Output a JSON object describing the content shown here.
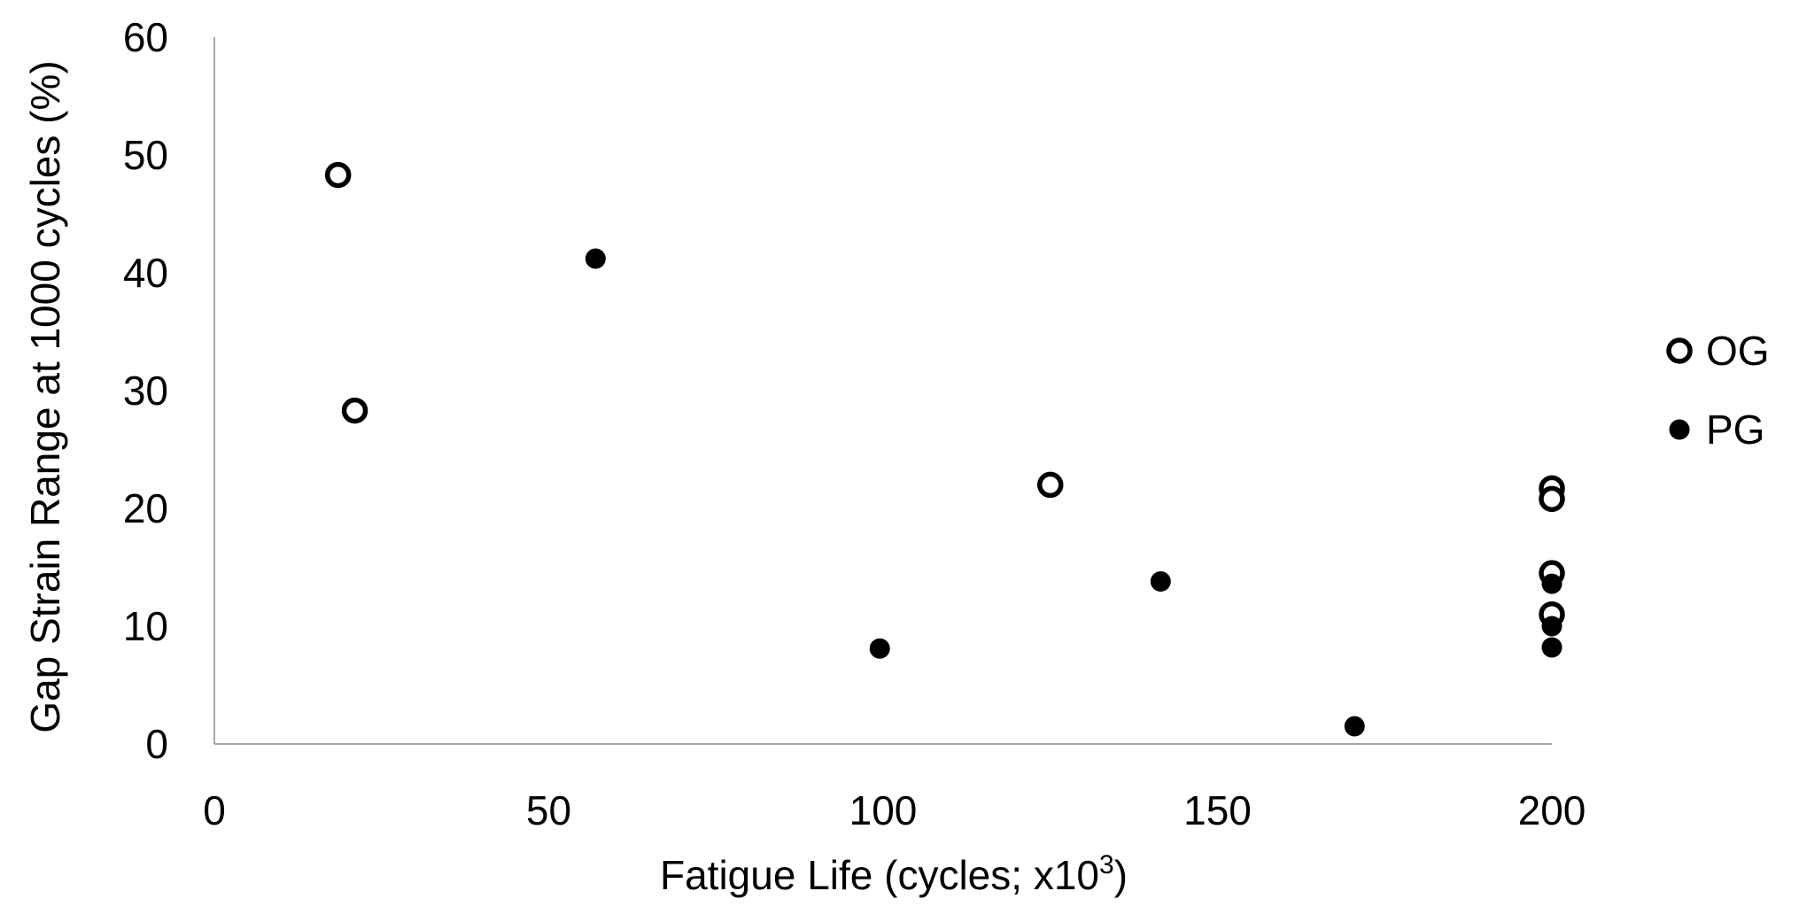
{
  "chart_data": {
    "type": "scatter",
    "title": "",
    "xlabel": "Fatigue Life (cycles; x10",
    "xlabel_superscript": "3",
    "xlabel_suffix": ")",
    "ylabel": "Gap Strain Range at 1000 cycles (%)",
    "xlim": [
      0,
      200
    ],
    "ylim": [
      0,
      60
    ],
    "x_ticks": [
      "0",
      "50",
      "100",
      "150",
      "200"
    ],
    "y_ticks": [
      "0",
      "10",
      "20",
      "30",
      "40",
      "50",
      "60"
    ],
    "grid": false,
    "legend_position": "right",
    "series": [
      {
        "name": "OG",
        "marker": "open-circle",
        "color": "#000000",
        "points": [
          {
            "x": 18.5,
            "y": 48.3
          },
          {
            "x": 21,
            "y": 28.3
          },
          {
            "x": 125,
            "y": 22
          },
          {
            "x": 200,
            "y": 21.7
          },
          {
            "x": 200,
            "y": 20.8
          },
          {
            "x": 200,
            "y": 14.5
          },
          {
            "x": 200,
            "y": 11
          }
        ]
      },
      {
        "name": "PG",
        "marker": "filled-circle",
        "color": "#000000",
        "points": [
          {
            "x": 57,
            "y": 41.2
          },
          {
            "x": 99.5,
            "y": 8.1
          },
          {
            "x": 141.5,
            "y": 13.8
          },
          {
            "x": 170.5,
            "y": 1.5
          },
          {
            "x": 200,
            "y": 13.6
          },
          {
            "x": 200,
            "y": 10
          },
          {
            "x": 200,
            "y": 8.2
          }
        ]
      }
    ]
  },
  "style": {
    "axis_color": "#a6a6a6",
    "marker_color": "#000000",
    "background": "#ffffff"
  }
}
